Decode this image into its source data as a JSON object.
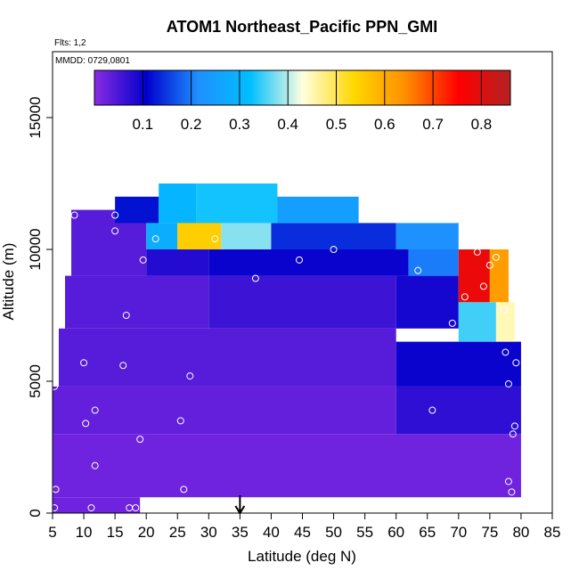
{
  "chart_data": {
    "type": "heatmap",
    "title": "ATOM1 Northeast_Pacific PPN_GMI",
    "annotations": [
      "Flts: 1,2",
      "MMDD: 0729,0801"
    ],
    "xlabel": "Latitude (deg N)",
    "ylabel": "Altitude (m)",
    "xlim": [
      5,
      85
    ],
    "ylim": [
      0,
      17500
    ],
    "x_ticks": [
      5,
      10,
      15,
      20,
      25,
      30,
      35,
      40,
      45,
      50,
      55,
      60,
      65,
      70,
      75,
      80,
      85
    ],
    "y_ticks": [
      0,
      5000,
      10000,
      15000
    ],
    "grid": false,
    "colorbar": {
      "placement": "top-inside",
      "range": [
        0,
        0.86
      ],
      "ticks": [
        0.1,
        0.2,
        0.3,
        0.4,
        0.5,
        0.6,
        0.7,
        0.8
      ],
      "colors": [
        "#8a2be2",
        "#0000cd",
        "#1e90ff",
        "#00bfff",
        "#ffffe0",
        "#ffd700",
        "#ff8c00",
        "#ff0000",
        "#b22222"
      ]
    },
    "marker_latitude": 35,
    "cells": [
      {
        "lat0": 5,
        "lat1": 19,
        "alt0": 0,
        "alt1": 600,
        "value": 0.02
      },
      {
        "lat0": 5,
        "lat1": 80,
        "alt0": 600,
        "alt1": 3000,
        "value": 0.02
      },
      {
        "lat0": 5,
        "lat1": 60,
        "alt0": 3000,
        "alt1": 4800,
        "value": 0.03
      },
      {
        "lat0": 60,
        "lat1": 80,
        "alt0": 3000,
        "alt1": 4800,
        "value": 0.07
      },
      {
        "lat0": 6,
        "lat1": 60,
        "alt0": 4800,
        "alt1": 7000,
        "value": 0.04
      },
      {
        "lat0": 60,
        "lat1": 80,
        "alt0": 4800,
        "alt1": 6500,
        "value": 0.1
      },
      {
        "lat0": 7,
        "lat1": 30,
        "alt0": 7000,
        "alt1": 9000,
        "value": 0.04
      },
      {
        "lat0": 30,
        "lat1": 60,
        "alt0": 7000,
        "alt1": 9000,
        "value": 0.06
      },
      {
        "lat0": 60,
        "lat1": 70,
        "alt0": 7000,
        "alt1": 9000,
        "value": 0.09
      },
      {
        "lat0": 70,
        "lat1": 76,
        "alt0": 6500,
        "alt1": 8000,
        "value": 0.35
      },
      {
        "lat0": 76,
        "lat1": 79,
        "alt0": 6500,
        "alt1": 8000,
        "value": 0.45
      },
      {
        "lat0": 8,
        "lat1": 20,
        "alt0": 9000,
        "alt1": 11500,
        "value": 0.04
      },
      {
        "lat0": 20,
        "lat1": 30,
        "alt0": 9000,
        "alt1": 10000,
        "value": 0.08
      },
      {
        "lat0": 30,
        "lat1": 62,
        "alt0": 9000,
        "alt1": 10000,
        "value": 0.1
      },
      {
        "lat0": 62,
        "lat1": 70,
        "alt0": 9000,
        "alt1": 10000,
        "value": 0.2
      },
      {
        "lat0": 70,
        "lat1": 75,
        "alt0": 8000,
        "alt1": 10000,
        "value": 0.78
      },
      {
        "lat0": 75,
        "lat1": 78,
        "alt0": 8000,
        "alt1": 10000,
        "value": 0.62
      },
      {
        "lat0": 20,
        "lat1": 25,
        "alt0": 10000,
        "alt1": 11000,
        "value": 0.28
      },
      {
        "lat0": 25,
        "lat1": 32,
        "alt0": 10000,
        "alt1": 11500,
        "value": 0.55
      },
      {
        "lat0": 32,
        "lat1": 40,
        "alt0": 10000,
        "alt1": 11000,
        "value": 0.38
      },
      {
        "lat0": 40,
        "lat1": 60,
        "alt0": 10000,
        "alt1": 11000,
        "value": 0.14
      },
      {
        "lat0": 60,
        "lat1": 70,
        "alt0": 10000,
        "alt1": 11000,
        "value": 0.22
      },
      {
        "lat0": 15,
        "lat1": 22,
        "alt0": 11000,
        "alt1": 12000,
        "value": 0.12
      },
      {
        "lat0": 22,
        "lat1": 28,
        "alt0": 11000,
        "alt1": 12500,
        "value": 0.3
      },
      {
        "lat0": 28,
        "lat1": 41,
        "alt0": 11000,
        "alt1": 12500,
        "value": 0.33
      },
      {
        "lat0": 41,
        "lat1": 54,
        "alt0": 11000,
        "alt1": 12000,
        "value": 0.25
      }
    ],
    "sample_points": [
      {
        "lat": 5.3,
        "alt": 200
      },
      {
        "lat": 5.5,
        "alt": 900
      },
      {
        "lat": 5.3,
        "alt": 4800
      },
      {
        "lat": 8.5,
        "alt": 11300
      },
      {
        "lat": 10,
        "alt": 5700
      },
      {
        "lat": 10.3,
        "alt": 3400
      },
      {
        "lat": 11.2,
        "alt": 200
      },
      {
        "lat": 11.8,
        "alt": 3900
      },
      {
        "lat": 11.8,
        "alt": 1800
      },
      {
        "lat": 15,
        "alt": 11300
      },
      {
        "lat": 15,
        "alt": 10700
      },
      {
        "lat": 16.3,
        "alt": 5600
      },
      {
        "lat": 16.8,
        "alt": 7500
      },
      {
        "lat": 17.3,
        "alt": 200
      },
      {
        "lat": 18.3,
        "alt": 200
      },
      {
        "lat": 19,
        "alt": 2800
      },
      {
        "lat": 19.5,
        "alt": 9600
      },
      {
        "lat": 21.5,
        "alt": 10400
      },
      {
        "lat": 25.5,
        "alt": 3500
      },
      {
        "lat": 26,
        "alt": 900
      },
      {
        "lat": 27,
        "alt": 5200
      },
      {
        "lat": 31,
        "alt": 10400
      },
      {
        "lat": 37.5,
        "alt": 8900
      },
      {
        "lat": 44.5,
        "alt": 9600
      },
      {
        "lat": 50,
        "alt": 10000
      },
      {
        "lat": 63.5,
        "alt": 9200
      },
      {
        "lat": 65.8,
        "alt": 3900
      },
      {
        "lat": 67.5,
        "alt": 11400
      },
      {
        "lat": 69,
        "alt": 7200
      },
      {
        "lat": 71,
        "alt": 8200
      },
      {
        "lat": 73,
        "alt": 9900
      },
      {
        "lat": 74,
        "alt": 8600
      },
      {
        "lat": 75,
        "alt": 9400
      },
      {
        "lat": 76,
        "alt": 9700
      },
      {
        "lat": 77.3,
        "alt": 7700
      },
      {
        "lat": 77.5,
        "alt": 6100
      },
      {
        "lat": 78,
        "alt": 4900
      },
      {
        "lat": 78,
        "alt": 1200
      },
      {
        "lat": 78.5,
        "alt": 800
      },
      {
        "lat": 78.7,
        "alt": 3000
      },
      {
        "lat": 79,
        "alt": 3300
      },
      {
        "lat": 79.2,
        "alt": 5700
      }
    ]
  }
}
